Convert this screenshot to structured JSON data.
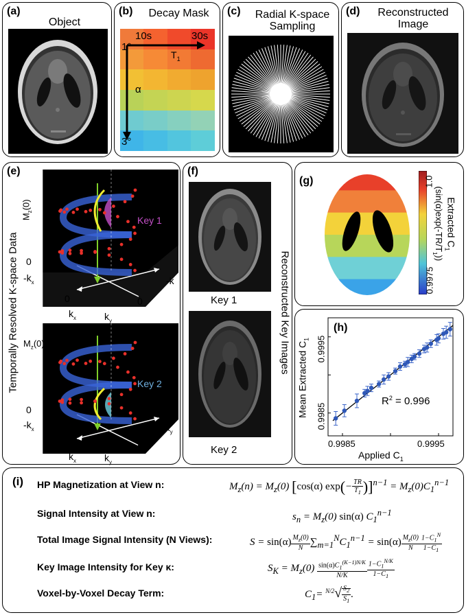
{
  "panels": {
    "a": {
      "label": "(a)",
      "title": "Object"
    },
    "b": {
      "label": "(b)",
      "title": "Decay Mask",
      "t_start": "10s",
      "t_end": "30s",
      "t1": "T",
      "t1_sub": "1",
      "alpha": "α",
      "angle_start": "1°",
      "angle_end": "3°",
      "colors": [
        "#f07a3a",
        "#f5622f",
        "#f04a2b",
        "#eb3529",
        "#f39a3a",
        "#f68a36",
        "#f27a34",
        "#ee6a31",
        "#f2c034",
        "#f3b632",
        "#f1ab30",
        "#eea32e",
        "#b9d258",
        "#c4d454",
        "#cdd550",
        "#d6d84c",
        "#6fcbd0",
        "#79cdc8",
        "#86d0bf",
        "#93d2b6",
        "#3fb5e8",
        "#47bde4",
        "#52c5de",
        "#5ecdd8"
      ]
    },
    "c": {
      "label": "(c)",
      "title_line1": "Radial K-space",
      "title_line2": "Sampling"
    },
    "d": {
      "label": "(d)",
      "title_line1": "Reconstructed",
      "title_line2": "Image"
    },
    "e": {
      "label": "(e)",
      "side_label": "Temporally Resolved K-space Data",
      "top": {
        "mz": "M",
        "mz_sub": "z",
        "mz_arg": "(0)",
        "key": "Key 1",
        "zero": "0",
        "neg_kx": "-k",
        "neg_kx_sub": "x",
        "neg_k": "-k",
        "zero2": "0",
        "kx": "k",
        "kx_sub": "x",
        "ky": "k",
        "ky_sub": "y",
        "zero3": "0"
      },
      "bottom": {
        "mz": "M",
        "mz_sub": "z",
        "mz_arg": "(0)",
        "key": "Key 2",
        "zero": "0",
        "neg_kx": "-k",
        "neg_kx_sub": "x",
        "neg_ky": "-k",
        "neg_ky_sub": "y",
        "zero2": "0",
        "kx": "k",
        "kx_sub": "x",
        "ky": "k",
        "ky_sub": "y",
        "zero3": "0"
      }
    },
    "f": {
      "label": "(f)",
      "side_label": "Reconstructed Key Images",
      "key1": "Key 1",
      "key2": "Key 2"
    },
    "g": {
      "label": "(g)",
      "colorbar_max": "1.0",
      "colorbar_min": "0.9975",
      "side_line1": "Extracted C",
      "side_line1_sub": "1",
      "side_line2": "(sin(α)exp(-TR/T",
      "side_line2_sub": "1",
      "side_line2_end": "))",
      "band_colors": [
        "#e8402a",
        "#f0803a",
        "#f3d23a",
        "#b7d65a",
        "#6fd0d6",
        "#3aa3e8"
      ]
    },
    "h": {
      "label": "(h)",
      "ylabel": "Mean Extracted C",
      "ylabel_sub": "1",
      "xlabel": "Applied C",
      "xlabel_sub": "1",
      "r2_prefix": "R",
      "r2_sup": "2",
      "r2_value": " = 0.996",
      "xticks": [
        "0.9985",
        "0.9995"
      ],
      "yticks": [
        "0.9985",
        "0.9995"
      ]
    },
    "i": {
      "label": "(i)",
      "rows": [
        {
          "label": "HP Magnetization at View n:"
        },
        {
          "label": "Signal Intensity at View n:"
        },
        {
          "label": "Total Image Signal Intensity (N Views):"
        },
        {
          "label": "Key Image Intensity for Key κ:"
        },
        {
          "label": "Voxel-by-Voxel Decay Term:"
        }
      ]
    }
  },
  "chart_data": {
    "type": "scatter",
    "xlabel": "Applied C1",
    "ylabel": "Mean Extracted C1",
    "xlim": [
      0.99835,
      0.99965
    ],
    "ylim": [
      0.9982,
      0.99975
    ],
    "annotation": "R2 = 0.996",
    "series": [
      {
        "x": [
          0.99843,
          0.99852,
          0.99865,
          0.99873,
          0.99876,
          0.9988,
          0.99888,
          0.99893,
          0.99898,
          0.99905,
          0.9991,
          0.99915,
          0.99918,
          0.99922,
          0.99925,
          0.9993,
          0.99935,
          0.99938,
          0.99942,
          0.99948,
          0.9995,
          0.99955,
          0.99958,
          0.99962
        ],
        "y": [
          0.99843,
          0.99853,
          0.99866,
          0.99876,
          0.99879,
          0.99883,
          0.99888,
          0.99894,
          0.99898,
          0.99905,
          0.99911,
          0.99914,
          0.99917,
          0.99921,
          0.99924,
          0.99928,
          0.99934,
          0.99936,
          0.99941,
          0.99946,
          0.99948,
          0.99954,
          0.99956,
          0.9996
        ],
        "err": [
          9e-05,
          8e-05,
          9e-05,
          5e-05,
          6e-05,
          5e-05,
          4e-05,
          6e-05,
          5e-05,
          4e-05,
          5e-05,
          4e-05,
          6e-05,
          5e-05,
          4e-05,
          5e-05,
          5e-05,
          6e-05,
          5e-05,
          7e-05,
          6e-05,
          7e-05,
          8e-05,
          9e-05
        ]
      }
    ]
  }
}
